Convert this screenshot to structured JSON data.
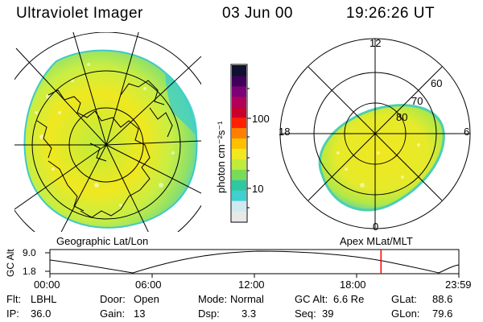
{
  "header": {
    "instrument": "Ultraviolet Imager",
    "date": "03 Jun 00",
    "time": "19:26:26 UT"
  },
  "colorbar": {
    "unit_label": "photon cm⁻²s⁻¹",
    "tick_100": "100",
    "tick_10": "10",
    "colors": [
      "#e8e8e8",
      "#cfe9f0",
      "#40d0d0",
      "#2fc8a0",
      "#78dc5a",
      "#c0ec3c",
      "#f0e820",
      "#ffc000",
      "#ff8000",
      "#ff2000",
      "#c8002c",
      "#b0005a",
      "#7c0078",
      "#40005a",
      "#101030"
    ]
  },
  "left_map": {
    "caption": "Geographic Lat/Lon"
  },
  "right_map": {
    "caption": "Apex MLat/MLT",
    "mlt_12": "12",
    "mlt_18": "18",
    "mlt_6": "6",
    "mlt_0": "0",
    "lat_60": "60",
    "lat_70": "70",
    "lat_80": "80"
  },
  "altitude_plot": {
    "ylabel": "GC Alt",
    "y_top": "9.0",
    "y_bottom": "1.8",
    "x_ticks": [
      "00:00",
      "06:00",
      "12:00",
      "18:00",
      "23:59"
    ],
    "current_time_marker": "19:26"
  },
  "footer": {
    "flt_label": "Flt:",
    "flt_value": "LBHL",
    "ip_label": "IP:",
    "ip_value": "36.0",
    "door_label": "Door:",
    "door_value": "Open",
    "gain_label": "Gain:",
    "gain_value": "13",
    "mode_label": "Mode:",
    "mode_value": "Normal",
    "dsp_label": "Dsp:",
    "dsp_value": "3.3",
    "gcalt_label": "GC Alt:",
    "gcalt_value": "6.6 Re",
    "seq_label": "Seq:",
    "seq_value": "39",
    "glat_label": "GLat:",
    "glat_value": "88.6",
    "glon_label": "GLon:",
    "glon_value": "79.6"
  }
}
